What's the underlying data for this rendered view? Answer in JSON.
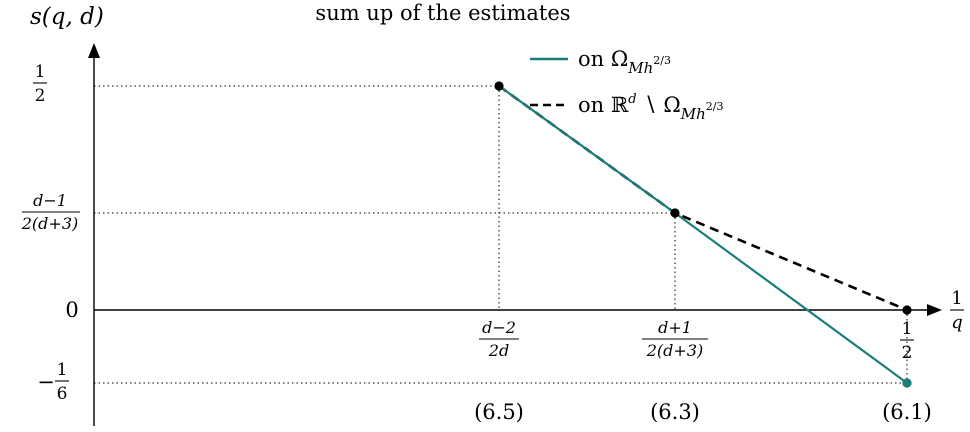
{
  "title": "sum up of the estimates",
  "y_axis_label": "s(q, d)",
  "x_axis_label": {
    "numerator": "1",
    "denominator": "q"
  },
  "y_ticks": [
    {
      "label_num": "1",
      "label_den": "2"
    },
    {
      "label_num": "d−1",
      "label_den": "2(d+3)"
    },
    {
      "label": "0"
    },
    {
      "label_num": "1",
      "label_den": "6",
      "sign": "−"
    }
  ],
  "x_ticks": [
    {
      "label_num": "d−2",
      "label_den": "2d",
      "ref": "(6.5)"
    },
    {
      "label_num": "d+1",
      "label_den": "2(d+3)",
      "ref": "(6.3)"
    },
    {
      "label_num": "1",
      "label_den": "2",
      "ref": "(6.1)"
    }
  ],
  "legend": [
    {
      "prefix": "on Ω",
      "subscript": "Mh",
      "superscript": "2/3",
      "style": "solid",
      "color": "#1a7f7a"
    },
    {
      "prefix": "on ℝ",
      "sup_d": "d",
      "middle": " ∖ Ω",
      "subscript": "Mh",
      "superscript": "2/3",
      "style": "dashed",
      "color": "#000000"
    }
  ],
  "colors": {
    "teal": "#1a7f7a",
    "black": "#000000"
  }
}
